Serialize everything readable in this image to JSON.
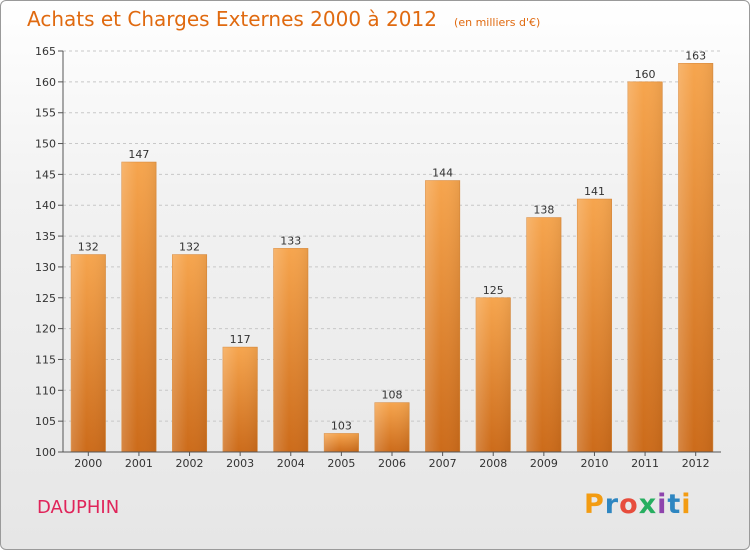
{
  "header": {
    "title": "Achats et Charges Externes 2000 à 2012",
    "unit": "(en milliers d'€)"
  },
  "footer": {
    "place": "DAUPHIN",
    "logo_text": "Proxiti",
    "logo_colors": [
      "#f39c12",
      "#2e86c1",
      "#e74c3c",
      "#27ae60",
      "#8e44ad",
      "#2e86c1",
      "#f39c12"
    ]
  },
  "colors": {
    "bar_light": "#f6a54e",
    "bar_dark": "#cc6b1a",
    "title": "#e06a10",
    "place": "#e0245a"
  },
  "chart_data": {
    "type": "bar",
    "categories": [
      "2000",
      "2001",
      "2002",
      "2003",
      "2004",
      "2005",
      "2006",
      "2007",
      "2008",
      "2009",
      "2010",
      "2011",
      "2012"
    ],
    "values": [
      132,
      147,
      132,
      117,
      133,
      103,
      108,
      144,
      125,
      138,
      141,
      160,
      163
    ],
    "title": "Achats et Charges Externes 2000 à 2012",
    "subtitle": "(en milliers d'€)",
    "ylim": [
      100,
      165
    ],
    "yticks": [
      100,
      105,
      110,
      115,
      120,
      125,
      130,
      135,
      140,
      145,
      150,
      155,
      160,
      165
    ],
    "grid": "horizontal dashed",
    "legend": "none"
  }
}
